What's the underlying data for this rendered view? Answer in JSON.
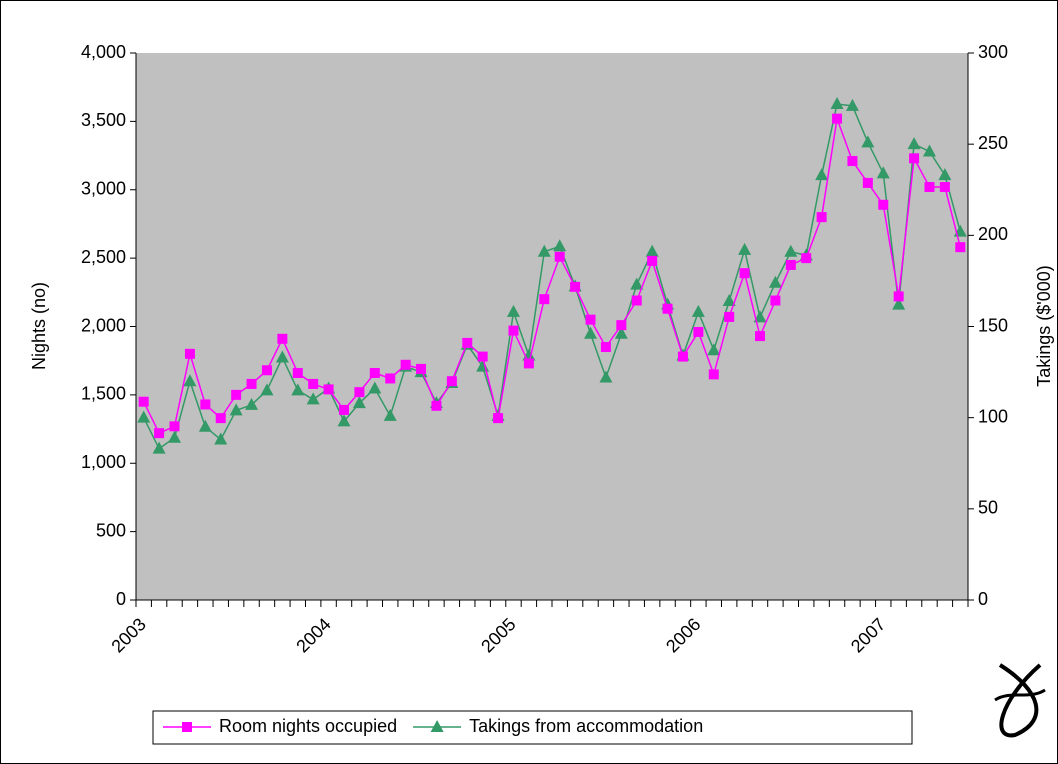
{
  "chart_data": {
    "type": "line",
    "y_label": "Nights (no)",
    "y2_label": "Takings ($'000)",
    "categories": [
      "2003",
      null,
      null,
      null,
      null,
      null,
      null,
      null,
      null,
      null,
      null,
      null,
      "2004",
      null,
      null,
      null,
      null,
      null,
      null,
      null,
      null,
      null,
      null,
      null,
      "2005",
      null,
      null,
      null,
      null,
      null,
      null,
      null,
      null,
      null,
      null,
      null,
      "2006",
      null,
      null,
      null,
      null,
      null,
      null,
      null,
      null,
      null,
      null,
      null,
      "2007",
      null,
      null,
      null,
      null,
      null
    ],
    "series": [
      {
        "name": "Room nights occupied",
        "color": "#ff00ff",
        "marker": "square",
        "values": [
          1450,
          1220,
          1270,
          1800,
          1430,
          1330,
          1500,
          1580,
          1680,
          1910,
          1660,
          1580,
          1540,
          1390,
          1520,
          1660,
          1620,
          1720,
          1690,
          1420,
          1600,
          1880,
          1780,
          1330,
          1970,
          1730,
          2200,
          2510,
          2290,
          2050,
          1850,
          2010,
          2190,
          2480,
          2130,
          1780,
          1960,
          1650,
          2070,
          2390,
          1930,
          2190,
          2450,
          2500,
          2800,
          3520,
          3210,
          3050,
          2890,
          2220,
          3230,
          3020,
          3020,
          2580
        ]
      },
      {
        "name": "Takings from accommodation",
        "color": "#339966",
        "marker": "triangle",
        "axis": "y2",
        "values": [
          100,
          83,
          89,
          120,
          95,
          88,
          104,
          107,
          115,
          133,
          115,
          110,
          116,
          98,
          108,
          116,
          101,
          128,
          125,
          108,
          119,
          140,
          128,
          101,
          158,
          134,
          191,
          194,
          172,
          146,
          122,
          146,
          173,
          191,
          162,
          134,
          158,
          137,
          164,
          192,
          155,
          174,
          191,
          189,
          233,
          272,
          271,
          251,
          234,
          162,
          250,
          246,
          233,
          202
        ]
      }
    ],
    "ylim": [
      0,
      4000
    ],
    "yticks": [
      0,
      500,
      {
        "value": 1000,
        "label": "1,000"
      },
      {
        "value": 1500,
        "label": "1,500"
      },
      {
        "value": 2000,
        "label": "2,000"
      },
      {
        "value": 2500,
        "label": "2,500"
      },
      {
        "value": 3000,
        "label": "3,000"
      },
      {
        "value": 3500,
        "label": "3,500"
      },
      {
        "value": 4000,
        "label": "4,000"
      }
    ],
    "y2lim": [
      0,
      300
    ],
    "y2ticks": [
      0,
      50,
      100,
      150,
      200,
      250,
      300
    ],
    "plot_background": "#c0c0c0"
  }
}
